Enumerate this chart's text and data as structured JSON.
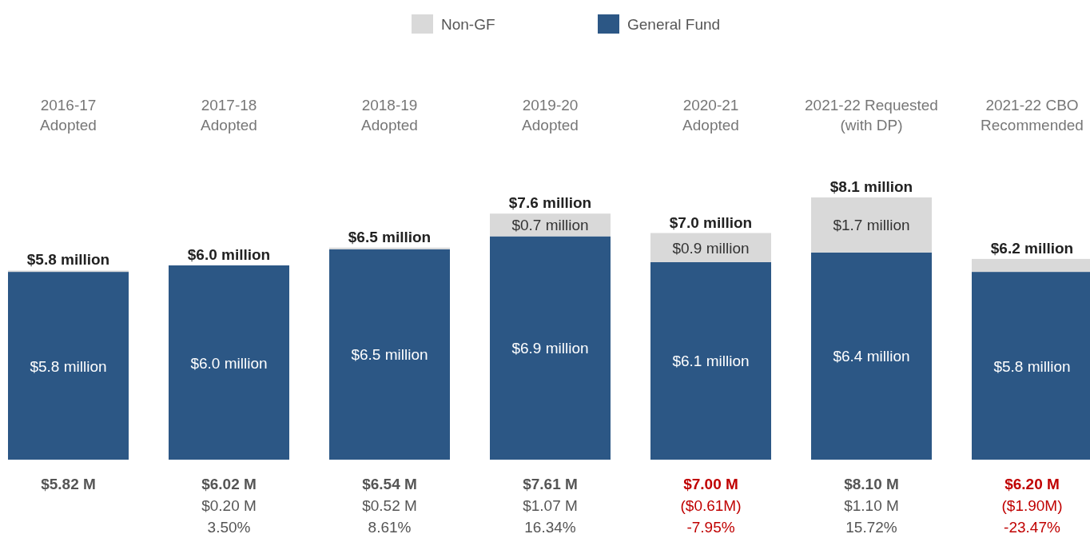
{
  "chart_data": {
    "type": "bar",
    "stacked": true,
    "legend": "top",
    "categories": [
      "2016-17\nAdopted",
      "2017-18\nAdopted",
      "2018-19\nAdopted",
      "2019-20\nAdopted",
      "2020-21\nAdopted",
      "2021-22 Requested\n(with DP)",
      "2021-22 CBO\nRecommended"
    ],
    "series": [
      {
        "name": "General Fund",
        "color": "#2c5785",
        "values": [
          5.8,
          6.0,
          6.5,
          6.9,
          6.1,
          6.4,
          5.8
        ],
        "value_labels": [
          "$5.8 million",
          "$6.0 million",
          "$6.5 million",
          "$6.9 million",
          "$6.1 million",
          "$6.4 million",
          "$5.8 million"
        ]
      },
      {
        "name": "Non-GF",
        "color": "#d9d9d9",
        "values": [
          0.04,
          null,
          0.05,
          0.7,
          0.9,
          1.7,
          0.4
        ],
        "value_labels": [
          null,
          null,
          null,
          "$0.7 million",
          "$0.9 million",
          "$1.7 million",
          null
        ]
      }
    ],
    "totals": [
      "$5.8 million",
      "$6.0 million",
      "$6.5 million",
      "$7.6 million",
      "$7.0 million",
      "$8.1 million",
      "$6.2 million"
    ],
    "annotations": [
      "$5.82 M",
      "$6.02 M",
      "$6.54 M",
      "$7.61 M",
      "$7.00 M",
      "$8.10 M",
      "$6.20 M",
      "$0.20 M",
      "$0.52 M",
      "$1.07 M",
      "($0.61M)",
      "$1.10 M",
      "($1.90M)",
      "3.50%",
      "8.61%",
      "16.34%",
      "-7.95%",
      "15.72%",
      "-23.47%"
    ]
  }
}
